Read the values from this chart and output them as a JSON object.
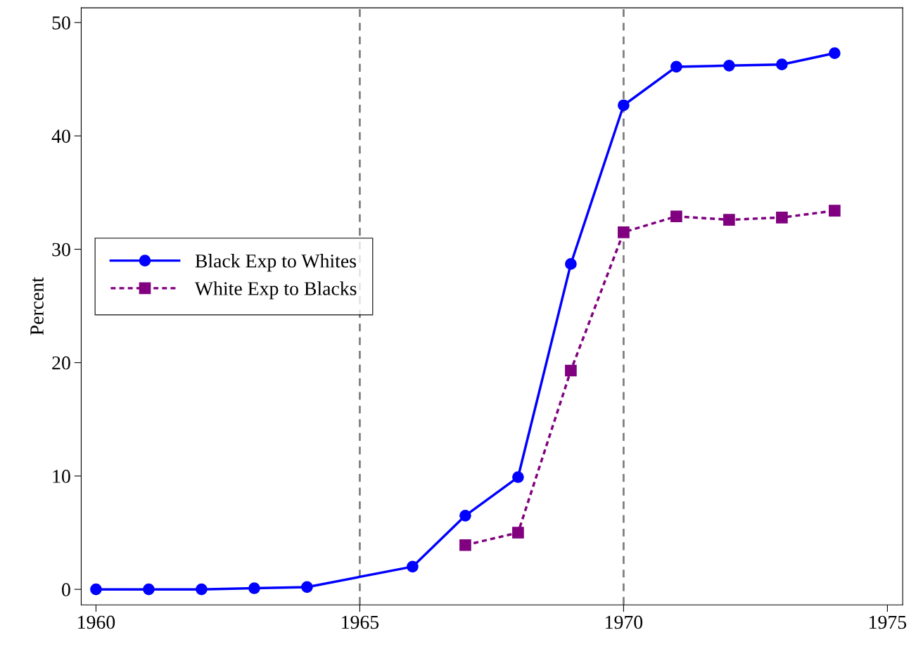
{
  "chart_data": {
    "type": "line",
    "ylabel": "Percent",
    "xlim": [
      1959.72,
      1975.29
    ],
    "ylim": [
      -1.37,
      51.3
    ],
    "xticks": [
      1960,
      1965,
      1970,
      1975
    ],
    "yticks": [
      0,
      10,
      20,
      30,
      40,
      50
    ],
    "grid": false,
    "legend": "left",
    "series": [
      {
        "name": "Black Exp to Whites",
        "color": "#0000ff",
        "marker": "circle",
        "line_style": "solid",
        "x": [
          1960,
          1961,
          1962,
          1963,
          1964,
          1966,
          1967,
          1968,
          1969,
          1970,
          1971,
          1972,
          1973,
          1974
        ],
        "values": [
          0,
          0,
          0,
          0.1,
          0.2,
          2.0,
          6.5,
          9.9,
          28.7,
          42.7,
          46.1,
          46.2,
          46.3,
          47.3
        ]
      },
      {
        "name": "White Exp to Blacks",
        "color": "#800080",
        "marker": "square",
        "line_style": "dotted",
        "x": [
          1967,
          1968,
          1969,
          1970,
          1971,
          1972,
          1973,
          1974
        ],
        "values": [
          3.9,
          5.0,
          19.3,
          31.5,
          32.9,
          32.6,
          32.8,
          33.4
        ]
      }
    ],
    "ref_lines": [
      {
        "axis": "x",
        "value": 1965,
        "color": "#808080",
        "line_style": "dashed"
      },
      {
        "axis": "x",
        "value": 1970,
        "color": "#808080",
        "line_style": "dashed"
      }
    ]
  }
}
